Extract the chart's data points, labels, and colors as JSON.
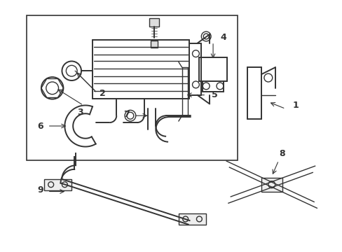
{
  "background_color": "#ffffff",
  "line_color": "#333333",
  "fig_width": 4.89,
  "fig_height": 3.6,
  "dpi": 100,
  "font_size": 8
}
